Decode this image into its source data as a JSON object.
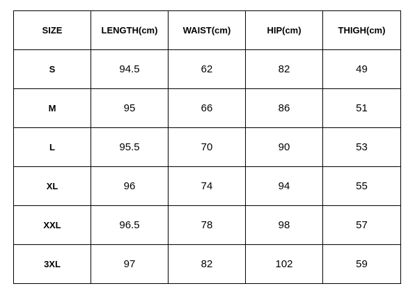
{
  "table": {
    "headers": [
      "SIZE",
      "LENGTH(cm)",
      "WAIST(cm)",
      "HIP(cm)",
      "THIGH(cm)"
    ],
    "rows": [
      [
        "S",
        "94.5",
        "62",
        "82",
        "49"
      ],
      [
        "M",
        "95",
        "66",
        "86",
        "51"
      ],
      [
        "L",
        "95.5",
        "70",
        "90",
        "53"
      ],
      [
        "XL",
        "96",
        "74",
        "94",
        "55"
      ],
      [
        "XXL",
        "96.5",
        "78",
        "98",
        "57"
      ],
      [
        "3XL",
        "97",
        "82",
        "102",
        "59"
      ]
    ]
  }
}
